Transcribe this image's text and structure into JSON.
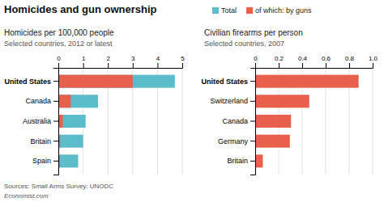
{
  "title": "Homicides and gun ownership",
  "source": "Sources: Small Arms Survey; UNODC",
  "credit": "Economist.com",
  "chart_data": [
    {
      "type": "bar",
      "orientation": "horizontal",
      "stacked": false,
      "title": "Homicides per 100,000 people",
      "subtitle": "Selected countries, 2012 or latest",
      "categories": [
        "United States",
        "Canada",
        "Australia",
        "Britain",
        "Spain"
      ],
      "series": [
        {
          "name": "Total",
          "color": "#5bbcca",
          "values": [
            4.7,
            1.6,
            1.1,
            1.0,
            0.8
          ]
        },
        {
          "name": "of which: by guns",
          "color": "#e8604c",
          "values": [
            3.0,
            0.5,
            0.18,
            0.07,
            0.06
          ]
        }
      ],
      "xlim": [
        0,
        5
      ],
      "xticks": [
        0,
        1,
        2,
        3,
        4,
        5
      ],
      "grid": true,
      "legend": "top"
    },
    {
      "type": "bar",
      "orientation": "horizontal",
      "title": "Civilian firearms per person",
      "subtitle": "Selected countries, 2007",
      "categories": [
        "United States",
        "Switzerland",
        "Canada",
        "Germany",
        "Britain"
      ],
      "values": [
        0.88,
        0.46,
        0.305,
        0.295,
        0.065
      ],
      "color": "#e8604c",
      "xlim": [
        0,
        1.0
      ],
      "xticks": [
        0,
        0.2,
        0.4,
        0.6,
        0.8,
        {
          "value": 1.0,
          "label": "1.0"
        }
      ],
      "grid": true
    }
  ]
}
